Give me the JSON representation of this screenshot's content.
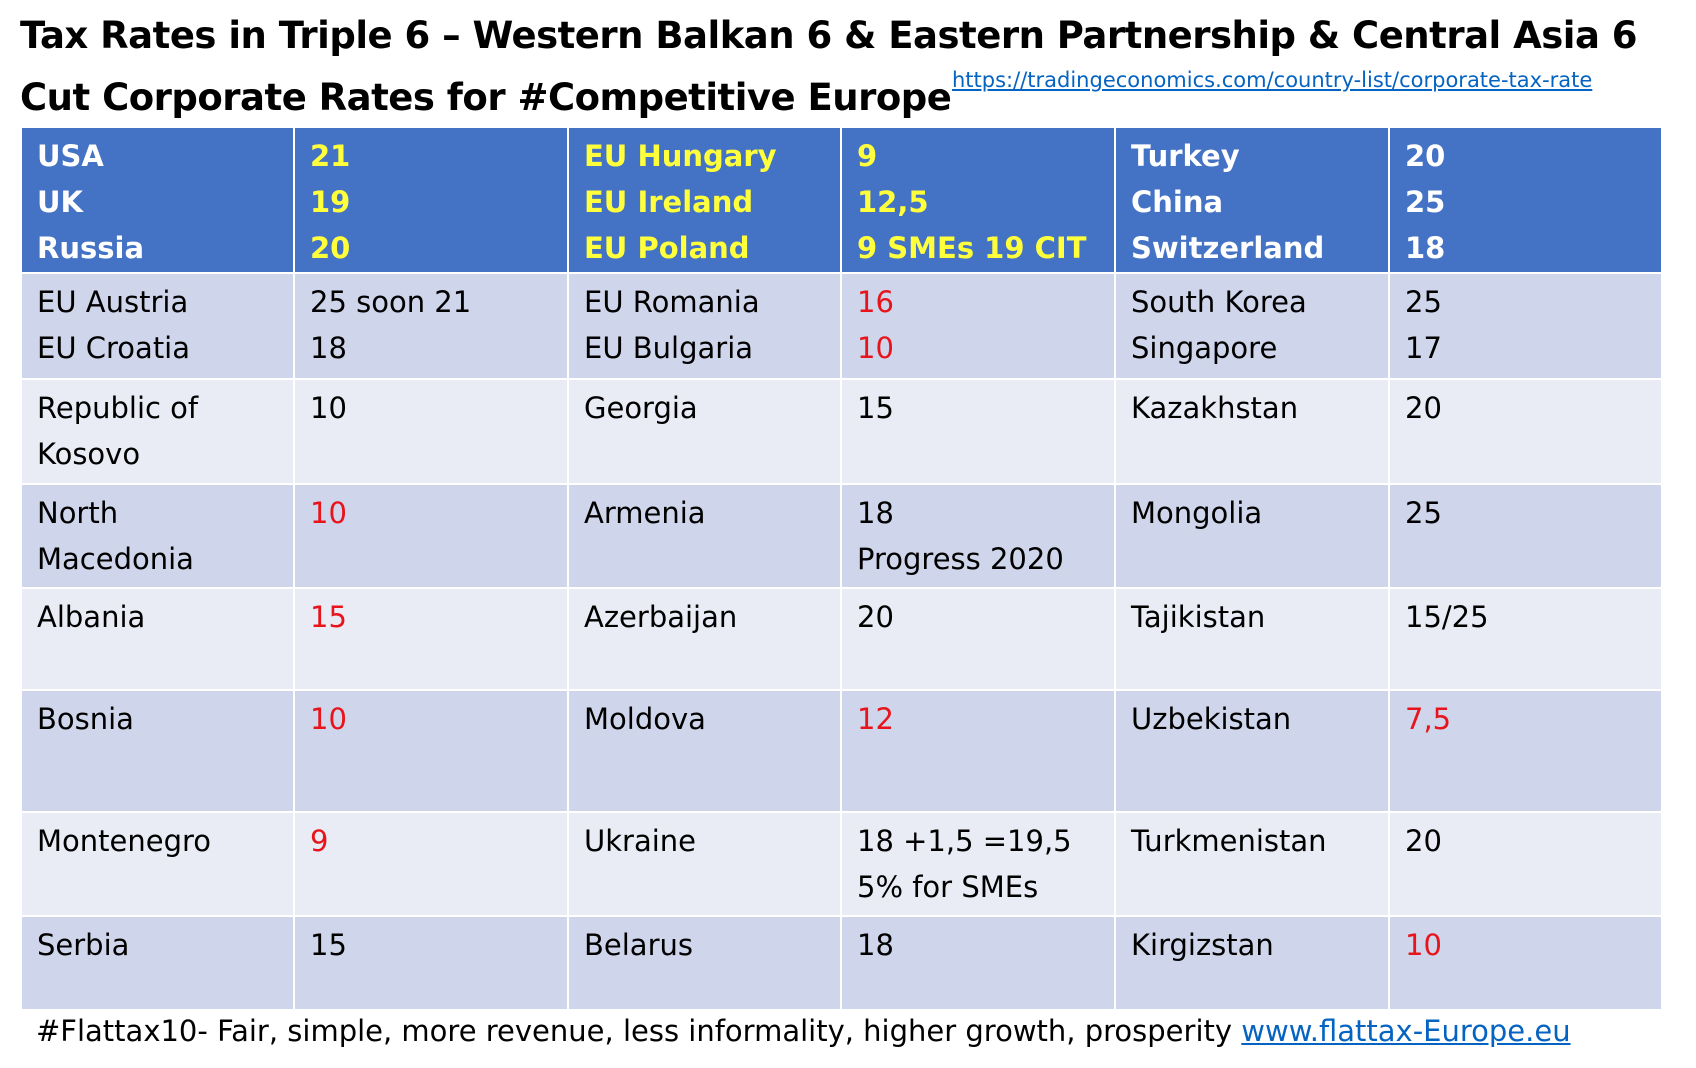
{
  "title": {
    "line1": "Tax Rates in Triple 6 – Western Balkan 6 & Eastern Partnership & Central Asia 6",
    "line2": "Cut Corporate Rates for #Competitive Europe",
    "link": "https://tradingeconomics.com/country-list/corporate-tax-rate"
  },
  "table": {
    "rows": [
      [
        {
          "lines": [
            "USA",
            "UK",
            "Russia"
          ]
        },
        {
          "lines": [
            "21",
            "19",
            "20"
          ],
          "color": "yellow"
        },
        {
          "lines": [
            "EU Hungary",
            "EU Ireland",
            "EU Poland"
          ],
          "color": "yellow"
        },
        {
          "lines": [
            "9",
            "12,5",
            "9 SMEs 19 CIT"
          ],
          "color": "yellow"
        },
        {
          "lines": [
            "Turkey",
            "China",
            "Switzerland"
          ]
        },
        {
          "lines": [
            "20",
            "25",
            "18"
          ]
        }
      ],
      [
        {
          "lines": [
            "EU Austria",
            "EU Croatia"
          ]
        },
        {
          "lines": [
            "25 soon 21",
            "18"
          ]
        },
        {
          "lines": [
            "EU Romania",
            "EU Bulgaria"
          ]
        },
        {
          "lines": [
            "16",
            "10"
          ],
          "color": "red"
        },
        {
          "lines": [
            "South Korea",
            "Singapore"
          ]
        },
        {
          "lines": [
            "25",
            "17"
          ]
        }
      ],
      [
        {
          "lines": [
            "Republic of",
            "Kosovo"
          ]
        },
        {
          "lines": [
            "10"
          ]
        },
        {
          "lines": [
            "Georgia"
          ]
        },
        {
          "lines": [
            "15"
          ]
        },
        {
          "lines": [
            "Kazakhstan"
          ]
        },
        {
          "lines": [
            "20"
          ]
        }
      ],
      [
        {
          "lines": [
            "North",
            "Macedonia"
          ]
        },
        {
          "lines": [
            "10"
          ],
          "color": "red"
        },
        {
          "lines": [
            "Armenia"
          ]
        },
        {
          "lines": [
            "18",
            "Progress 2020"
          ]
        },
        {
          "lines": [
            "Mongolia"
          ]
        },
        {
          "lines": [
            "25"
          ]
        }
      ],
      [
        {
          "lines": [
            "Albania"
          ]
        },
        {
          "lines": [
            "15"
          ],
          "color": "red"
        },
        {
          "lines": [
            "Azerbaijan"
          ]
        },
        {
          "lines": [
            "20"
          ]
        },
        {
          "lines": [
            "Tajikistan"
          ]
        },
        {
          "lines": [
            "15/25"
          ]
        }
      ],
      [
        {
          "lines": [
            "Bosnia"
          ]
        },
        {
          "lines": [
            "10"
          ],
          "color": "red"
        },
        {
          "lines": [
            "Moldova"
          ]
        },
        {
          "lines": [
            "12"
          ],
          "color": "red"
        },
        {
          "lines": [
            "Uzbekistan"
          ]
        },
        {
          "lines": [
            "7,5"
          ],
          "color": "red"
        }
      ],
      [
        {
          "lines": [
            "Montenegro"
          ]
        },
        {
          "lines": [
            "9"
          ],
          "color": "red"
        },
        {
          "lines": [
            "Ukraine"
          ]
        },
        {
          "lines": [
            "18 +1,5 =19,5",
            "5% for SMEs"
          ]
        },
        {
          "lines": [
            "Turkmenistan"
          ]
        },
        {
          "lines": [
            "20"
          ]
        }
      ],
      [
        {
          "lines": [
            "Serbia"
          ]
        },
        {
          "lines": [
            "15"
          ]
        },
        {
          "lines": [
            "Belarus"
          ]
        },
        {
          "lines": [
            "18"
          ]
        },
        {
          "lines": [
            "Kirgizstan"
          ]
        },
        {
          "lines": [
            "10"
          ],
          "color": "red"
        }
      ]
    ]
  },
  "footer": {
    "text": "#Flattax10- Fair, simple, more revenue, less informality, higher growth, prosperity",
    "link": "www.flattax-Europe.eu"
  }
}
